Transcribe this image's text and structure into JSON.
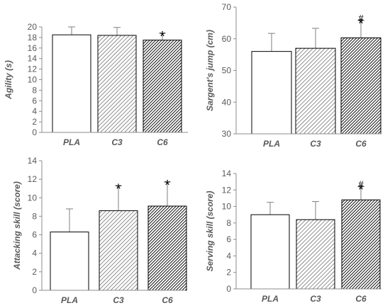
{
  "patterns": {
    "PLA": "white",
    "C3": "light-diagonal-hatch",
    "C6": "dark-diagonal-hatch"
  },
  "colors": {
    "axis": "#8c8c8c",
    "bar_outline": "#000000",
    "text": "#595959"
  },
  "chart_data": [
    {
      "type": "bar",
      "title": "",
      "xlabel": "",
      "ylabel": "Agility (s)",
      "categories": [
        "PLA",
        "C3",
        "C6"
      ],
      "values": [
        18.5,
        18.4,
        17.5
      ],
      "errors": [
        1.5,
        1.5,
        1.3
      ],
      "ylim": [
        0,
        20
      ],
      "yticks": [
        "0",
        "2",
        "4",
        "6",
        "8",
        "10",
        "12",
        "14",
        "16",
        "18",
        "20"
      ],
      "annotations": [
        {
          "category": "C6",
          "symbols": [
            "*"
          ]
        }
      ],
      "grid": false
    },
    {
      "type": "bar",
      "title": "",
      "xlabel": "",
      "ylabel": "Sargent's jump (cm)",
      "categories": [
        "PLA",
        "C3",
        "C6"
      ],
      "values": [
        56,
        57,
        60.3
      ],
      "errors": [
        5.7,
        6.3,
        5.5
      ],
      "ylim": [
        30,
        70
      ],
      "yticks": [
        "30",
        "40",
        "50",
        "60",
        "70"
      ],
      "annotations": [
        {
          "category": "C6",
          "symbols": [
            "*",
            "#"
          ]
        }
      ],
      "grid": false
    },
    {
      "type": "bar",
      "title": "",
      "xlabel": "",
      "ylabel": "Attacking skill (score)",
      "categories": [
        "PLA",
        "C3",
        "C6"
      ],
      "values": [
        6.3,
        8.6,
        9.1
      ],
      "errors": [
        2.5,
        2.7,
        2.6
      ],
      "ylim": [
        0,
        14
      ],
      "yticks": [
        "0",
        "2",
        "4",
        "6",
        "8",
        "10",
        "12",
        "14"
      ],
      "annotations": [
        {
          "category": "C3",
          "symbols": [
            "*"
          ]
        },
        {
          "category": "C6",
          "symbols": [
            "*"
          ]
        }
      ],
      "grid": false
    },
    {
      "type": "bar",
      "title": "",
      "xlabel": "",
      "ylabel": "Serving skill (score)",
      "categories": [
        "PLA",
        "C3",
        "C6"
      ],
      "values": [
        9.0,
        8.4,
        10.8
      ],
      "errors": [
        1.5,
        2.2,
        1.6
      ],
      "ylim": [
        0,
        14
      ],
      "yticks": [
        "0",
        "2",
        "4",
        "6",
        "8",
        "10",
        "12",
        "14"
      ],
      "annotations": [
        {
          "category": "C6",
          "symbols": [
            "*",
            "#"
          ]
        }
      ],
      "grid": false
    }
  ]
}
